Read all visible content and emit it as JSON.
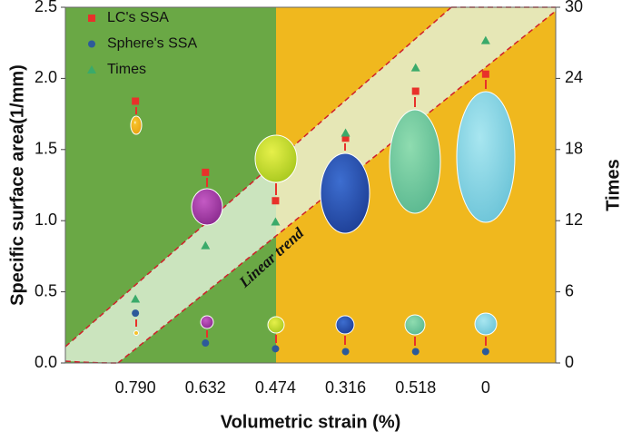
{
  "chart_data": {
    "type": "scatter",
    "categories": [
      "0.790",
      "0.632",
      "0.474",
      "0.316",
      "0.518",
      "0"
    ],
    "x_label": "Volumetric strain (%)",
    "y_label": "Specific surface area(1/mm)",
    "y2_label": "Times",
    "annotation": "Linear trend",
    "ylim": [
      0,
      2.5
    ],
    "yticks": [
      {
        "value": 0,
        "label": "0.0"
      },
      0.5,
      {
        "value": 1,
        "label": "1.0"
      },
      1.5,
      {
        "value": 2,
        "label": "2.0"
      },
      2.5
    ],
    "y2lim": [
      0,
      30
    ],
    "y2ticks": [
      0,
      6,
      12,
      18,
      24,
      30
    ],
    "series": [
      {
        "name": "LC's SSA",
        "color": "#e8312a",
        "marker": "square",
        "values": [
          1.84,
          1.34,
          1.14,
          1.58,
          1.91,
          2.03
        ]
      },
      {
        "name": "Sphere's SSA",
        "color": "#2d5a9a",
        "marker": "circle",
        "values": [
          0.35,
          0.14,
          0.1,
          0.08,
          0.08,
          0.08
        ]
      },
      {
        "name": "Times",
        "color": "#3aaa6a",
        "marker": "triangle",
        "axis": "y2",
        "values": [
          5.4,
          9.9,
          11.9,
          19.4,
          24.9,
          27.2
        ]
      }
    ]
  }
}
